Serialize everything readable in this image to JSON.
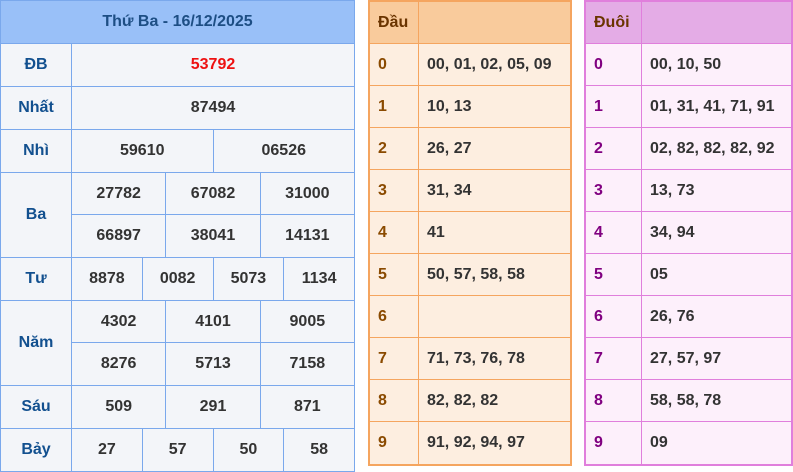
{
  "results": {
    "title": "Thứ Ba - 16/12/2025",
    "prizes": [
      {
        "label": "ĐB",
        "rows": [
          [
            "53792"
          ]
        ]
      },
      {
        "label": "Nhất",
        "rows": [
          [
            "87494"
          ]
        ]
      },
      {
        "label": "Nhì",
        "rows": [
          [
            "59610",
            "06526"
          ]
        ]
      },
      {
        "label": "Ba",
        "rows": [
          [
            "27782",
            "67082",
            "31000"
          ],
          [
            "66897",
            "38041",
            "14131"
          ]
        ]
      },
      {
        "label": "Tư",
        "rows": [
          [
            "8878",
            "0082",
            "5073",
            "1134"
          ]
        ]
      },
      {
        "label": "Năm",
        "rows": [
          [
            "4302",
            "4101",
            "9005"
          ],
          [
            "8276",
            "5713",
            "7158"
          ]
        ]
      },
      {
        "label": "Sáu",
        "rows": [
          [
            "509",
            "291",
            "871"
          ]
        ]
      },
      {
        "label": "Bảy",
        "rows": [
          [
            "27",
            "57",
            "50",
            "58"
          ]
        ]
      }
    ]
  },
  "dau": {
    "header": "Đầu",
    "rows": [
      {
        "k": "0",
        "v": "00, 01, 02, 05, 09"
      },
      {
        "k": "1",
        "v": "10, 13"
      },
      {
        "k": "2",
        "v": "26, 27"
      },
      {
        "k": "3",
        "v": "31, 34"
      },
      {
        "k": "4",
        "v": "41"
      },
      {
        "k": "5",
        "v": "50, 57, 58, 58"
      },
      {
        "k": "6",
        "v": ""
      },
      {
        "k": "7",
        "v": "71, 73, 76, 78"
      },
      {
        "k": "8",
        "v": "82, 82, 82"
      },
      {
        "k": "9",
        "v": "91, 92, 94, 97"
      }
    ]
  },
  "duoi": {
    "header": "Đuôi",
    "rows": [
      {
        "k": "0",
        "v": "00, 10, 50"
      },
      {
        "k": "1",
        "v": "01, 31, 41, 71, 91"
      },
      {
        "k": "2",
        "v": "02, 82, 82, 82, 92"
      },
      {
        "k": "3",
        "v": "13, 73"
      },
      {
        "k": "4",
        "v": "34, 94"
      },
      {
        "k": "5",
        "v": "05"
      },
      {
        "k": "6",
        "v": "26, 76"
      },
      {
        "k": "7",
        "v": "27, 57, 97"
      },
      {
        "k": "8",
        "v": "58, 58, 78"
      },
      {
        "k": "9",
        "v": "09"
      }
    ]
  },
  "colors": {
    "special": "#ee1111",
    "blue_header": "#99c0f8",
    "orange_header": "#f9cb9c",
    "pink_header": "#e4ace6"
  }
}
